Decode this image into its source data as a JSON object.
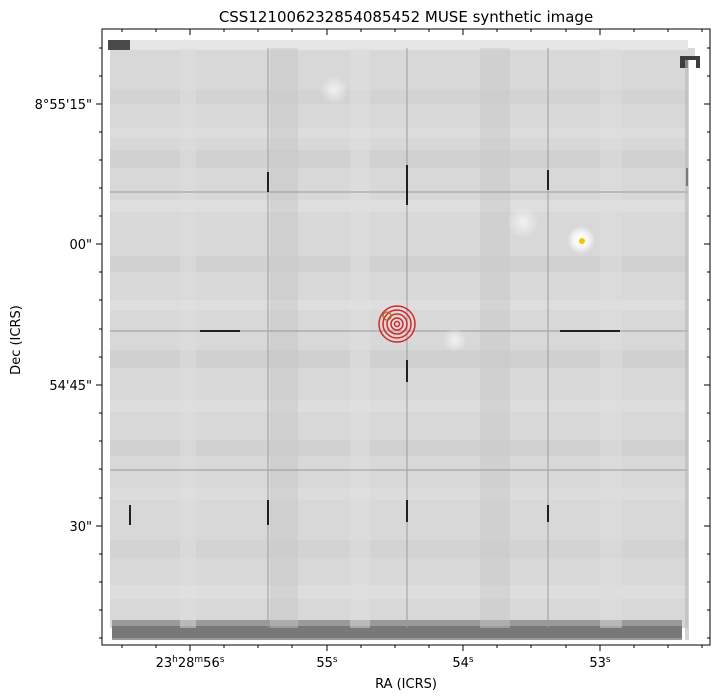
{
  "title": "CSS121006232854085452 MUSE synthetic image",
  "x_axis": {
    "label": "RA (ICRS)",
    "ticks": [
      {
        "h": "23",
        "h_unit": "h",
        "m": "28",
        "m_unit": "m",
        "s": "56",
        "s_unit": "s"
      },
      {
        "s": "55",
        "s_unit": "s"
      },
      {
        "s": "54",
        "s_unit": "s"
      },
      {
        "s": "53",
        "s_unit": "s"
      }
    ]
  },
  "y_axis": {
    "label": "Dec (ICRS)",
    "ticks": [
      "8°55'15\"",
      "00\"",
      "54'45\"",
      "30\""
    ]
  },
  "colors": {
    "target_circles": "#d62728",
    "small_marker": "#b5651d",
    "bright_source": "#f5c400",
    "frame": "#000000"
  }
}
